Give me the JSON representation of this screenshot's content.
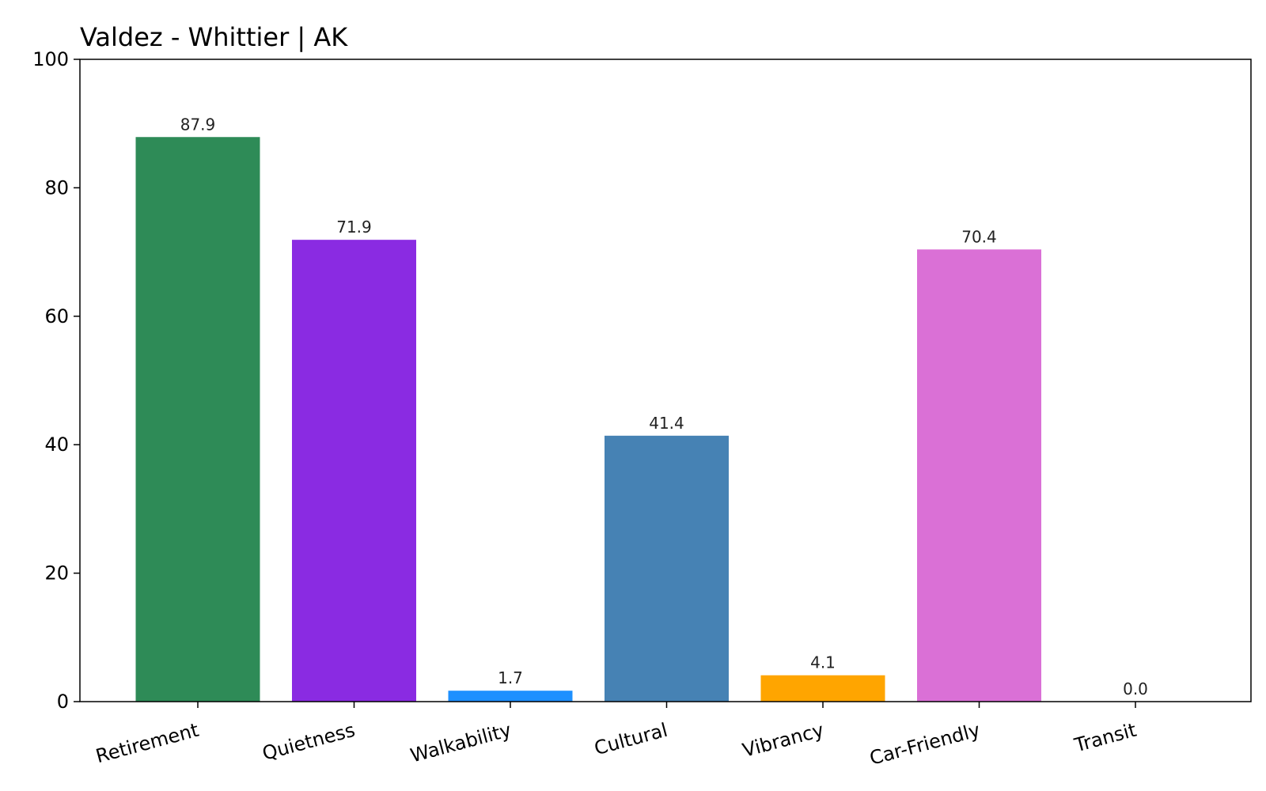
{
  "chart_data": {
    "type": "bar",
    "title": "Valdez - Whittier | AK",
    "xlabel": "",
    "ylabel": "",
    "ylim": [
      0,
      100
    ],
    "yticks": [
      0,
      20,
      40,
      60,
      80,
      100
    ],
    "categories": [
      "Retirement",
      "Quietness",
      "Walkability",
      "Cultural",
      "Vibrancy",
      "Car-Friendly",
      "Transit"
    ],
    "values": [
      87.9,
      71.9,
      1.7,
      41.4,
      4.1,
      70.4,
      0.0
    ],
    "value_labels": [
      "87.9",
      "71.9",
      "1.7",
      "41.4",
      "4.1",
      "70.4",
      "0.0"
    ],
    "colors": [
      "#2e8b57",
      "#8a2be2",
      "#1e90ff",
      "#4682b4",
      "#ffa500",
      "#da70d6",
      "#808080"
    ],
    "grid": false,
    "legend": "none"
  }
}
